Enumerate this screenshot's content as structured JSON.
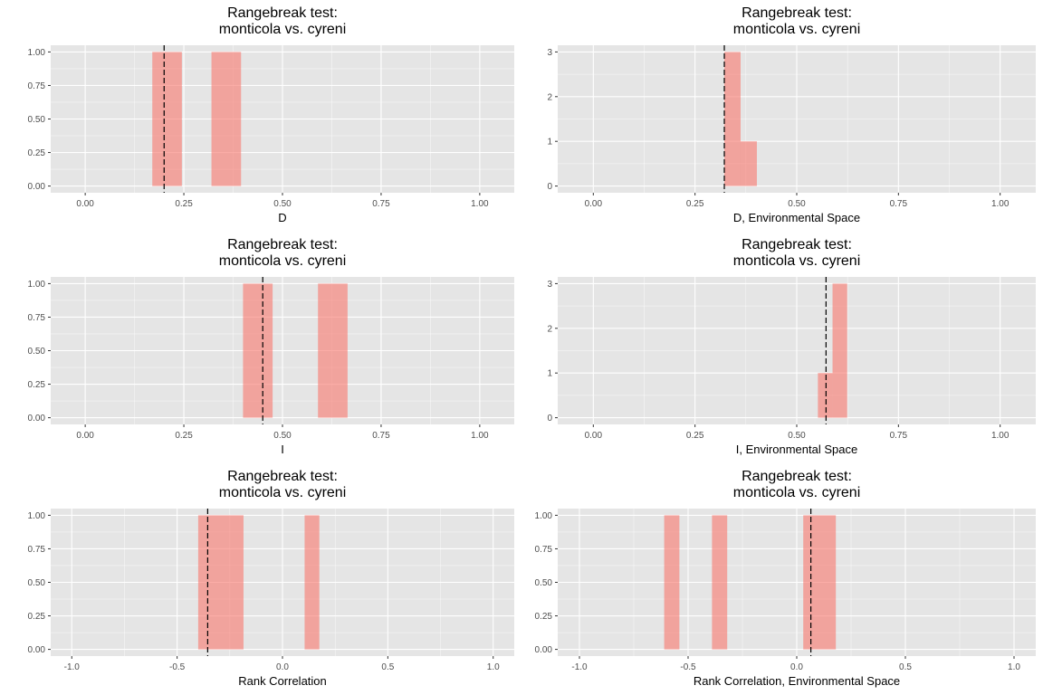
{
  "figure": {
    "name": "rangebreak-test-histograms"
  },
  "style": {
    "panel_bg": "#e5e5e5",
    "grid_major": "#ffffff",
    "bar_fill": "#f8766d",
    "bar_opacity": 0.6,
    "vline_color": "#000000",
    "text_color": "#000000",
    "tick_text_color": "#4d4d4d"
  },
  "chart_data": [
    {
      "type": "bar",
      "title": "Rangebreak test:\nmonticola vs. cyreni",
      "xlabel": "D",
      "ylabel": "",
      "xlim": [
        -0.0875,
        1.0875
      ],
      "ylim": [
        -0.05,
        1.05
      ],
      "xticks": [
        0.0,
        0.25,
        0.5,
        0.75,
        1.0
      ],
      "xtick_labels": [
        "0.00",
        "0.25",
        "0.50",
        "0.75",
        "1.00"
      ],
      "yticks": [
        0.0,
        0.25,
        0.5,
        0.75,
        1.0
      ],
      "ytick_labels": [
        "0.00",
        "0.25",
        "0.50",
        "0.75",
        "1.00"
      ],
      "bars": [
        {
          "x0": 0.17,
          "x1": 0.245,
          "value": 1
        },
        {
          "x0": 0.32,
          "x1": 0.395,
          "value": 1
        }
      ],
      "vline": 0.2
    },
    {
      "type": "bar",
      "title": "Rangebreak test:\nmonticola vs. cyreni",
      "xlabel": "D, Environmental Space",
      "ylabel": "",
      "xlim": [
        -0.0875,
        1.0875
      ],
      "ylim": [
        -0.15,
        3.15
      ],
      "xticks": [
        0.0,
        0.25,
        0.5,
        0.75,
        1.0
      ],
      "xtick_labels": [
        "0.00",
        "0.25",
        "0.50",
        "0.75",
        "1.00"
      ],
      "yticks": [
        0,
        1,
        2,
        3
      ],
      "ytick_labels": [
        "0",
        "1",
        "2",
        "3"
      ],
      "bars": [
        {
          "x0": 0.322,
          "x1": 0.362,
          "value": 3
        },
        {
          "x0": 0.362,
          "x1": 0.402,
          "value": 1
        }
      ],
      "vline": 0.322
    },
    {
      "type": "bar",
      "title": "Rangebreak test:\nmonticola vs. cyreni",
      "xlabel": "I",
      "ylabel": "",
      "xlim": [
        -0.0875,
        1.0875
      ],
      "ylim": [
        -0.05,
        1.05
      ],
      "xticks": [
        0.0,
        0.25,
        0.5,
        0.75,
        1.0
      ],
      "xtick_labels": [
        "0.00",
        "0.25",
        "0.50",
        "0.75",
        "1.00"
      ],
      "yticks": [
        0.0,
        0.25,
        0.5,
        0.75,
        1.0
      ],
      "ytick_labels": [
        "0.00",
        "0.25",
        "0.50",
        "0.75",
        "1.00"
      ],
      "bars": [
        {
          "x0": 0.4,
          "x1": 0.475,
          "value": 1
        },
        {
          "x0": 0.59,
          "x1": 0.665,
          "value": 1
        }
      ],
      "vline": 0.45
    },
    {
      "type": "bar",
      "title": "Rangebreak test:\nmonticola vs. cyreni",
      "xlabel": "I, Environmental Space",
      "ylabel": "",
      "xlim": [
        -0.0875,
        1.0875
      ],
      "ylim": [
        -0.15,
        3.15
      ],
      "xticks": [
        0.0,
        0.25,
        0.5,
        0.75,
        1.0
      ],
      "xtick_labels": [
        "0.00",
        "0.25",
        "0.50",
        "0.75",
        "1.00"
      ],
      "yticks": [
        0,
        1,
        2,
        3
      ],
      "ytick_labels": [
        "0",
        "1",
        "2",
        "3"
      ],
      "bars": [
        {
          "x0": 0.552,
          "x1": 0.588,
          "value": 1
        },
        {
          "x0": 0.588,
          "x1": 0.624,
          "value": 3
        }
      ],
      "vline": 0.572
    },
    {
      "type": "bar",
      "title": "Rangebreak test:\nmonticola vs. cyreni",
      "xlabel": "Rank Correlation",
      "ylabel": "",
      "xlim": [
        -1.1,
        1.1
      ],
      "ylim": [
        -0.05,
        1.05
      ],
      "xticks": [
        -1.0,
        -0.5,
        0.0,
        0.5,
        1.0
      ],
      "xtick_labels": [
        "-1.0",
        "-0.5",
        "0.0",
        "0.5",
        "1.0"
      ],
      "yticks": [
        0.0,
        0.25,
        0.5,
        0.75,
        1.0
      ],
      "ytick_labels": [
        "0.00",
        "0.25",
        "0.50",
        "0.75",
        "1.00"
      ],
      "bars": [
        {
          "x0": -0.4,
          "x1": -0.185,
          "value": 1
        },
        {
          "x0": 0.105,
          "x1": 0.175,
          "value": 1
        }
      ],
      "vline": -0.355
    },
    {
      "type": "bar",
      "title": "Rangebreak test:\nmonticola vs. cyreni",
      "xlabel": "Rank Correlation, Environmental Space",
      "ylabel": "",
      "xlim": [
        -1.1,
        1.1
      ],
      "ylim": [
        -0.05,
        1.05
      ],
      "xticks": [
        -1.0,
        -0.5,
        0.0,
        0.5,
        1.0
      ],
      "xtick_labels": [
        "-1.0",
        "-0.5",
        "0.0",
        "0.5",
        "1.0"
      ],
      "yticks": [
        0.0,
        0.25,
        0.5,
        0.75,
        1.0
      ],
      "ytick_labels": [
        "0.00",
        "0.25",
        "0.50",
        "0.75",
        "1.00"
      ],
      "bars": [
        {
          "x0": -0.61,
          "x1": -0.54,
          "value": 1
        },
        {
          "x0": -0.39,
          "x1": -0.32,
          "value": 1
        },
        {
          "x0": 0.03,
          "x1": 0.18,
          "value": 1
        }
      ],
      "vline": 0.065
    }
  ]
}
